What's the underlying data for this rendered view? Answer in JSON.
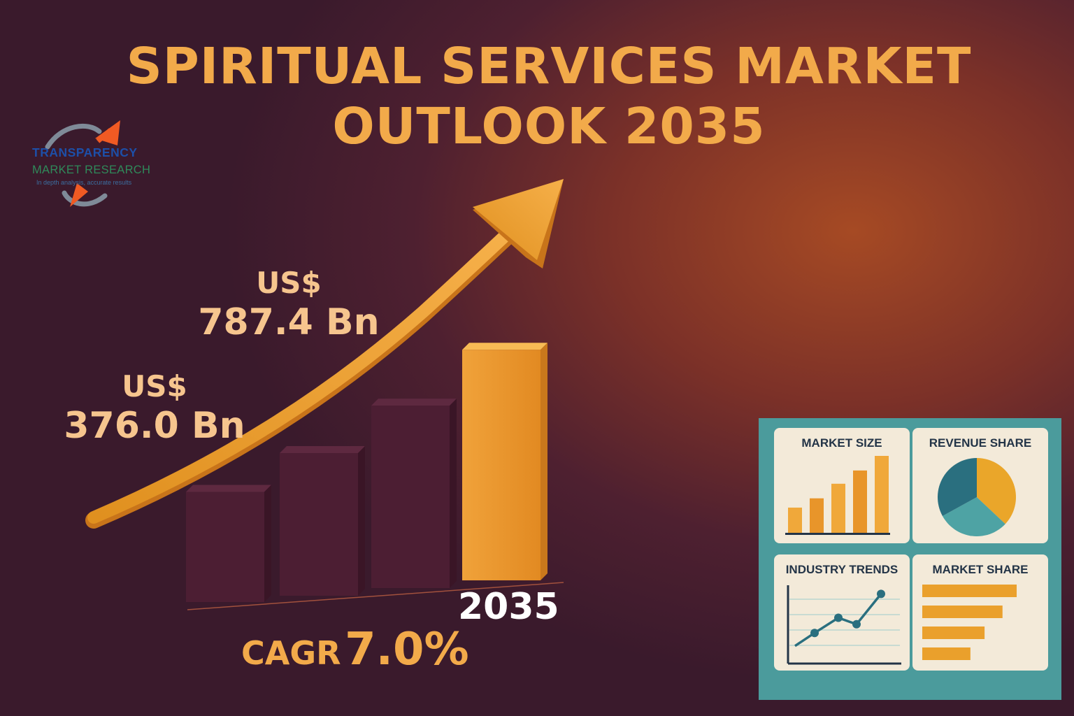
{
  "chart_data": {
    "type": "bar",
    "title": "SPIRITUAL SERVICES MARKET OUTLOOK 2035",
    "categories": [
      "",
      "",
      "",
      "2035"
    ],
    "values": [
      376.0,
      487,
      623,
      787.4
    ],
    "value_labels": [
      {
        "currency": "US$",
        "amount": "376.0 Bn"
      },
      {
        "currency": "US$",
        "amount": "787.4 Bn"
      }
    ],
    "ylim": [
      0,
      850
    ],
    "trend_arrow": true,
    "xlabel": "",
    "ylabel": ""
  },
  "kpi": {
    "year": "2035",
    "cagr_label": "CAGR",
    "cagr_value": "7.0%"
  },
  "logo": {
    "line1": "TRANSPARENCY",
    "line2": "MARKET RESEARCH",
    "line3": "In depth analysis, accurate results"
  },
  "dashboard": {
    "market_size": {
      "title": "MARKET SIZE",
      "values": [
        1.9,
        2.6,
        3.7,
        4.7,
        5.8
      ]
    },
    "revenue_share": {
      "title": "REVENUE SHARE",
      "slices": [
        {
          "name": "orange",
          "value": 37
        },
        {
          "name": "teal",
          "value": 30
        },
        {
          "name": "dark-teal",
          "value": 33
        }
      ]
    },
    "industry_trends": {
      "title": "INDUSTRY TRENDS",
      "values": [
        1.2,
        1.8,
        2.5,
        2.2,
        3.6
      ]
    },
    "market_share": {
      "title": "MARKET SHARE",
      "values": [
        100,
        85,
        66,
        51
      ]
    }
  },
  "colors": {
    "accent": "#f2aa4a",
    "bar_dark": "#4c1e33",
    "bar_hi": "#e8962c",
    "teal": "#4b9b9c",
    "card": "#f3ead9",
    "navy": "#233447",
    "pie_orange": "#eaa62a",
    "pie_teal": "#4ea3a4",
    "pie_dark": "#2a6f7f"
  }
}
